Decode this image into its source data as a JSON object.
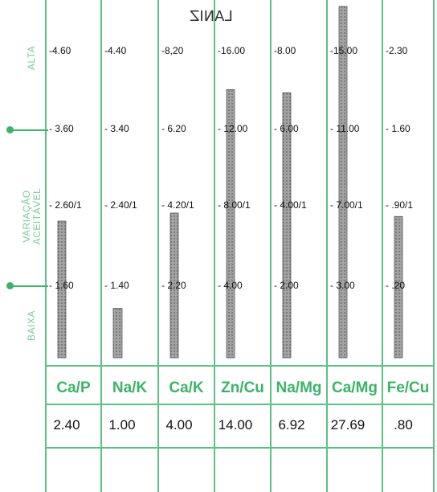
{
  "scrawl": "LANIZ",
  "side_labels": {
    "high": "ALTA",
    "acceptable_line1": "VARIAÇÃO",
    "acceptable_line2": "ACEITÁVEL",
    "low": "BAIXA"
  },
  "colors": {
    "grid": "#5cc184",
    "header_text": "#3db36a",
    "bar": "#9a9a9a",
    "tick_text": "#111111"
  },
  "chart_data": {
    "type": "bar",
    "categories": [
      "Ca/P",
      "Na/K",
      "Ca/K",
      "Zn/Cu",
      "Na/Mg",
      "Ca/Mg",
      "Fe/Cu"
    ],
    "row_labels": [
      "ALTA",
      "",
      "VARIAÇÃO ACEITÁVEL",
      "",
      "BAIXA"
    ],
    "ticks": {
      "high": [
        "-4.60",
        "-4.40",
        "-8,20",
        "-16.00",
        "-8.00",
        "-15.00",
        "-2.30"
      ],
      "upper": [
        "- 3.60",
        "- 3.40",
        "- 6.20",
        "- 12.00",
        "- 6.00",
        "- 11.00",
        "- 1.60"
      ],
      "ideal": [
        "- 2.60/1",
        "- 2.40/1",
        "- 4.20/1",
        "- 8.00/1",
        "- 4.00/1",
        "- 7.00/1",
        "- .90/1"
      ],
      "lower": [
        "- 1.60",
        "- 1.40",
        "- 2.20",
        "- 4.00",
        "- 2.00",
        "- 3.00",
        "- .20"
      ]
    },
    "value_labels": [
      "2.40",
      "1.00",
      "4.00",
      "14.00",
      "6.92",
      "27.69",
      ".80"
    ],
    "values": [
      2.4,
      1.0,
      4.0,
      14.0,
      6.92,
      27.69,
      0.8
    ]
  }
}
